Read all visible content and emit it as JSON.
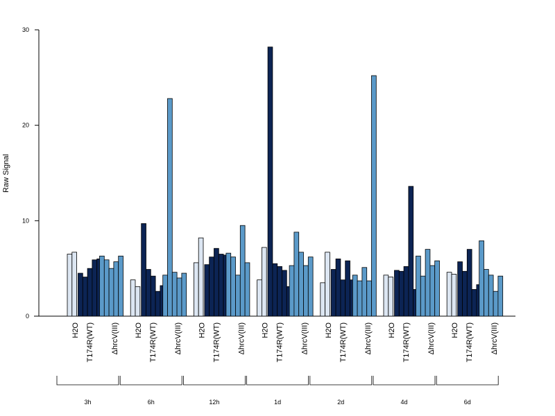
{
  "chart_data": {
    "type": "bar",
    "ylabel": "Raw Signal",
    "ylim": [
      0,
      30
    ],
    "yticks": [
      0,
      10,
      20,
      30
    ],
    "groups": [
      "3h",
      "6h",
      "12h",
      "1d",
      "2d",
      "4d",
      "6d"
    ],
    "categories": [
      "H2O",
      "T174R(WT)",
      "ΔhrcV(III)"
    ],
    "colors": {
      "H2O": "#dce6f2",
      "T174R(WT)": "#0c2454",
      "ΔhrcV(III)": "#5b9ac9"
    },
    "values": {
      "3h": {
        "H2O": [
          6.5,
          6.7
        ],
        "T174R(WT)": [
          4.5,
          4.1,
          5.0,
          5.9,
          6.0
        ],
        "ΔhrcV(III)": [
          6.3,
          5.9,
          5.0,
          5.7,
          6.3
        ]
      },
      "6h": {
        "H2O": [
          3.8,
          3.1
        ],
        "T174R(WT)": [
          9.7,
          4.9,
          4.2,
          2.6,
          3.2
        ],
        "ΔhrcV(III)": [
          4.3,
          22.8,
          4.6,
          4.0,
          4.5
        ]
      },
      "12h": {
        "H2O": [
          5.6,
          8.2
        ],
        "T174R(WT)": [
          5.4,
          6.2,
          7.1,
          6.5,
          6.4
        ],
        "ΔhrcV(III)": [
          6.6,
          6.2,
          4.3,
          9.5,
          5.6
        ]
      },
      "1d": {
        "H2O": [
          3.8,
          7.2
        ],
        "T174R(WT)": [
          28.2,
          5.5,
          5.2,
          4.8,
          3.1
        ],
        "ΔhrcV(III)": [
          5.3,
          8.8,
          6.7,
          5.3,
          6.2
        ]
      },
      "2d": {
        "H2O": [
          3.5,
          6.7
        ],
        "T174R(WT)": [
          4.9,
          6.0,
          3.8,
          5.8,
          3.8
        ],
        "ΔhrcV(III)": [
          4.3,
          3.7,
          5.1,
          3.7,
          25.2
        ]
      },
      "4d": {
        "H2O": [
          4.3,
          4.1
        ],
        "T174R(WT)": [
          4.8,
          4.7,
          5.2,
          13.6,
          2.8
        ],
        "ΔhrcV(III)": [
          6.3,
          4.2,
          7.0,
          5.3,
          5.8
        ]
      },
      "6d": {
        "H2O": [
          4.6,
          4.4
        ],
        "T174R(WT)": [
          5.7,
          4.7,
          7.0,
          2.8,
          3.3
        ],
        "ΔhrcV(III)": [
          7.9,
          4.9,
          4.3,
          2.6,
          4.2
        ]
      }
    }
  }
}
